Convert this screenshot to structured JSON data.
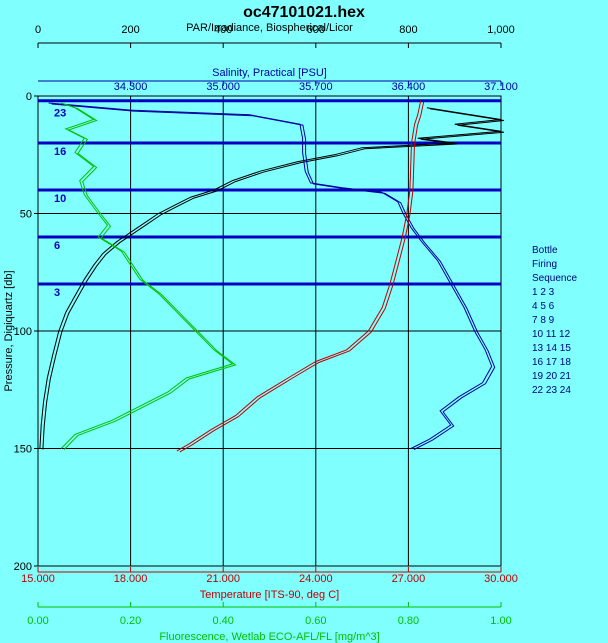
{
  "chart_data": {
    "type": "line",
    "title": "oc47101021.hex",
    "y_axis": {
      "label": "Pressure, Digiquartz [db]",
      "range": [
        0,
        200
      ],
      "ticks": [
        0,
        50,
        100,
        150,
        200
      ],
      "tick_labels": [
        "0",
        "50",
        "100",
        "150",
        "200"
      ],
      "inverted": true
    },
    "axes": {
      "par": {
        "label": "PAR/Irradiance, Biospherical/Licor",
        "range": [
          0,
          1000
        ],
        "ticks": [
          0,
          200,
          400,
          600,
          800,
          1000
        ],
        "tick_labels": [
          "0",
          "200",
          "400",
          "600",
          "800",
          "1,000"
        ],
        "color": "#000000"
      },
      "salinity": {
        "label": "Salinity, Practical [PSU]",
        "range": [
          33.6,
          37.1
        ],
        "ticks": [
          34.3,
          35.0,
          35.7,
          36.4,
          37.1
        ],
        "tick_labels": [
          "34.300",
          "35.000",
          "35.700",
          "36.400",
          "37.100"
        ],
        "color": "#0000a0"
      },
      "temperature": {
        "label": "Temperature [ITS-90, deg C]",
        "range": [
          15,
          30
        ],
        "ticks": [
          15,
          18,
          21,
          24,
          27,
          30
        ],
        "tick_labels": [
          "15.000",
          "18.000",
          "21.000",
          "24.000",
          "27.000",
          "30.000"
        ],
        "color": "#c00000"
      },
      "fluorescence": {
        "label": "Fluorescence, Wetlab ECO-AFL/FL [mg/m^3]",
        "range": [
          0,
          1
        ],
        "ticks": [
          0,
          0.2,
          0.4,
          0.6,
          0.8,
          1.0
        ],
        "tick_labels": [
          "0.00",
          "0.20",
          "0.40",
          "0.60",
          "0.80",
          "1.00"
        ],
        "color": "#00c000"
      }
    },
    "grid": true,
    "series": [
      {
        "axis": "par",
        "color": "#000000",
        "points": [
          [
            840,
            5
          ],
          [
            1000,
            10
          ],
          [
            900,
            12
          ],
          [
            1000,
            15
          ],
          [
            820,
            18
          ],
          [
            900,
            20
          ],
          [
            700,
            22
          ],
          [
            640,
            25
          ],
          [
            560,
            28
          ],
          [
            480,
            32
          ],
          [
            420,
            36
          ],
          [
            380,
            40
          ],
          [
            330,
            43
          ],
          [
            300,
            46
          ],
          [
            260,
            50
          ],
          [
            230,
            54
          ],
          [
            200,
            58
          ],
          [
            170,
            62
          ],
          [
            140,
            67
          ],
          [
            120,
            72
          ],
          [
            100,
            78
          ],
          [
            80,
            85
          ],
          [
            60,
            92
          ],
          [
            45,
            100
          ],
          [
            32,
            110
          ],
          [
            20,
            120
          ],
          [
            12,
            130
          ],
          [
            7,
            140
          ],
          [
            4,
            150
          ]
        ]
      },
      {
        "axis": "salinity",
        "color": "#0000a0",
        "points": [
          [
            33.68,
            3
          ],
          [
            34.3,
            6
          ],
          [
            35.2,
            8
          ],
          [
            35.58,
            12
          ],
          [
            35.6,
            18
          ],
          [
            35.6,
            24
          ],
          [
            35.62,
            32
          ],
          [
            35.66,
            37
          ],
          [
            35.9,
            39
          ],
          [
            36.2,
            41
          ],
          [
            36.32,
            45
          ],
          [
            36.36,
            50
          ],
          [
            36.42,
            56
          ],
          [
            36.5,
            62
          ],
          [
            36.62,
            70
          ],
          [
            36.72,
            80
          ],
          [
            36.82,
            90
          ],
          [
            36.9,
            100
          ],
          [
            36.98,
            108
          ],
          [
            37.03,
            115
          ],
          [
            36.96,
            122
          ],
          [
            36.78,
            128
          ],
          [
            36.64,
            134
          ],
          [
            36.72,
            140
          ],
          [
            36.56,
            146
          ],
          [
            36.42,
            150
          ]
        ]
      },
      {
        "axis": "temperature",
        "color": "#c00000",
        "points": [
          [
            27.4,
            2
          ],
          [
            27.3,
            8
          ],
          [
            27.2,
            12
          ],
          [
            27.1,
            20
          ],
          [
            27.05,
            40
          ],
          [
            26.95,
            50
          ],
          [
            26.8,
            60
          ],
          [
            26.6,
            70
          ],
          [
            26.4,
            80
          ],
          [
            26.15,
            90
          ],
          [
            25.7,
            100
          ],
          [
            25.0,
            108
          ],
          [
            24.0,
            113
          ],
          [
            23.1,
            120
          ],
          [
            22.1,
            128
          ],
          [
            21.4,
            136
          ],
          [
            20.6,
            142
          ],
          [
            19.9,
            148
          ],
          [
            19.5,
            151
          ]
        ]
      },
      {
        "axis": "fluorescence",
        "color": "#00c000",
        "points": [
          [
            0.05,
            3
          ],
          [
            0.08,
            5
          ],
          [
            0.12,
            10
          ],
          [
            0.06,
            14
          ],
          [
            0.1,
            18
          ],
          [
            0.08,
            24
          ],
          [
            0.12,
            30
          ],
          [
            0.09,
            36
          ],
          [
            0.1,
            42
          ],
          [
            0.13,
            50
          ],
          [
            0.15,
            55
          ],
          [
            0.13,
            60
          ],
          [
            0.18,
            66
          ],
          [
            0.2,
            72
          ],
          [
            0.22,
            78
          ],
          [
            0.26,
            84
          ],
          [
            0.3,
            92
          ],
          [
            0.34,
            100
          ],
          [
            0.38,
            108
          ],
          [
            0.42,
            114
          ],
          [
            0.32,
            120
          ],
          [
            0.28,
            126
          ],
          [
            0.22,
            132
          ],
          [
            0.16,
            138
          ],
          [
            0.08,
            144
          ],
          [
            0.05,
            150
          ]
        ]
      }
    ],
    "bottle_firing_lines": {
      "pressures": [
        2,
        20,
        40,
        60,
        80
      ],
      "labels": [
        "23",
        "16",
        "10",
        "6",
        "3"
      ],
      "color": "#0000c0"
    }
  },
  "legend": {
    "lines": [
      "Bottle",
      "Firing",
      "Sequence",
      " 1  2  3",
      "  4  5  6",
      "  7  8  9",
      "10 11 12",
      "13 14 15",
      "16 17 18",
      "19 20 21",
      "22 23 24"
    ]
  }
}
